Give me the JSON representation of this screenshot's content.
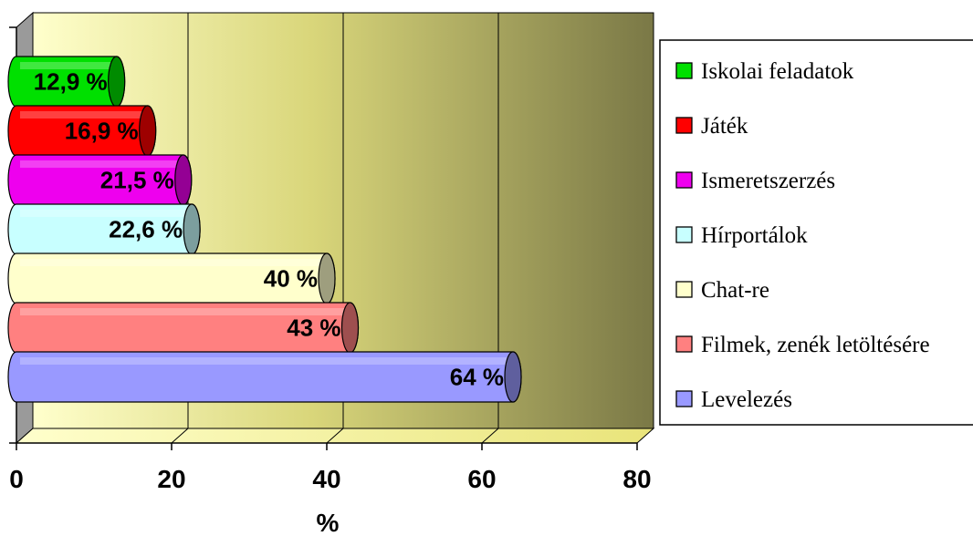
{
  "chart_data": {
    "type": "bar",
    "orientation": "horizontal",
    "title": "",
    "xlabel": "%",
    "ylabel": "",
    "xlim": [
      0,
      80
    ],
    "x_ticks": [
      "0",
      "20",
      "40",
      "60",
      "80"
    ],
    "grid": true,
    "legend_position": "right",
    "categories": [
      "Iskolai feladatok",
      "Játék",
      "Ismeretszerzés",
      "Hírportálok",
      "Chat-re",
      "Filmek, zenék letöltésére",
      "Levelezés"
    ],
    "values": [
      12.9,
      16.9,
      21.5,
      22.6,
      40,
      43,
      64
    ],
    "data_labels": [
      "12,9 %",
      "16,9 %",
      "21,5 %",
      "22,6 %",
      "40 %",
      "43 %",
      "64 %"
    ],
    "colors": [
      "#00e000",
      "#ff0000",
      "#ee00ee",
      "#c8ffff",
      "#ffffcc",
      "#ff8080",
      "#9999ff"
    ]
  }
}
